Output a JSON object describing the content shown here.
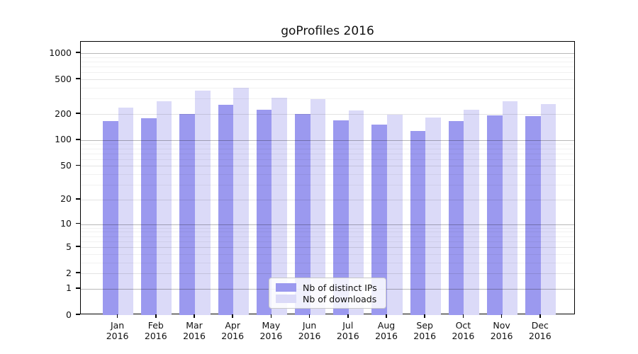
{
  "title": "goProfiles 2016",
  "colors": {
    "distinct_ips_bar": "#9B99EF",
    "downloads_bar": "#DBDAF8",
    "grid_decade": "rgba(0,0,0,0.28)",
    "grid_labeled": "rgba(0,0,0,0.11)",
    "grid_minor": "rgba(0,0,0,0.055)",
    "axis": "#000000"
  },
  "chart_data": {
    "type": "bar",
    "title": "goProfiles 2016",
    "categories": [
      "Jan",
      "Feb",
      "Mar",
      "Apr",
      "May",
      "Jun",
      "Jul",
      "Aug",
      "Sep",
      "Oct",
      "Nov",
      "Dec"
    ],
    "category_year": "2016",
    "series": [
      {
        "name": "Nb of distinct IPs",
        "color": "#9B99EF",
        "values": [
          165,
          180,
          200,
          255,
          225,
          200,
          168,
          150,
          128,
          165,
          193,
          190
        ]
      },
      {
        "name": "Nb of downloads",
        "color": "#DBDAF8",
        "values": [
          235,
          280,
          370,
          400,
          310,
          295,
          220,
          195,
          183,
          226,
          280,
          260
        ]
      }
    ],
    "xlabel": "",
    "ylabel": "",
    "yscale": "log1p",
    "yticks": [
      0,
      1,
      2,
      5,
      10,
      20,
      50,
      100,
      200,
      500,
      1000
    ],
    "ylim": [
      0,
      1350
    ],
    "grid": true,
    "legend_position": "bottom-center"
  }
}
